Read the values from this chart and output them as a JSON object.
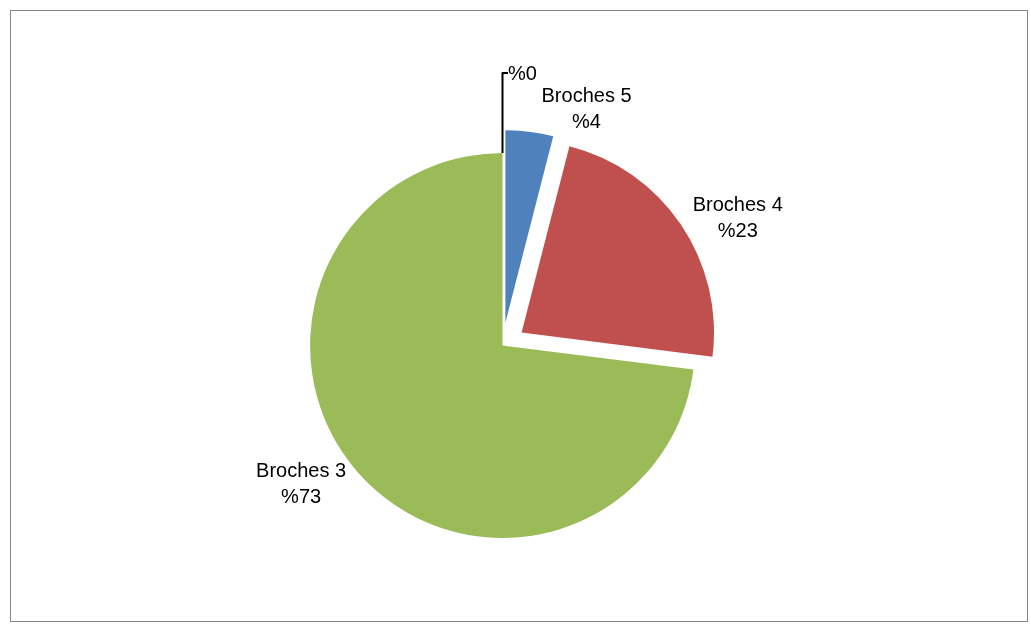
{
  "chart_data": {
    "type": "pie",
    "categories": [
      "Broches 5",
      "Broches 4",
      "Broches 3",
      null
    ],
    "values": [
      4,
      23,
      73,
      0
    ],
    "value_labels": [
      "%4",
      "%23",
      "%73",
      "%0"
    ],
    "colors": [
      "#4f81bd",
      "#c0504d",
      "#9bbb59",
      "#8064a2"
    ],
    "legend": false
  }
}
